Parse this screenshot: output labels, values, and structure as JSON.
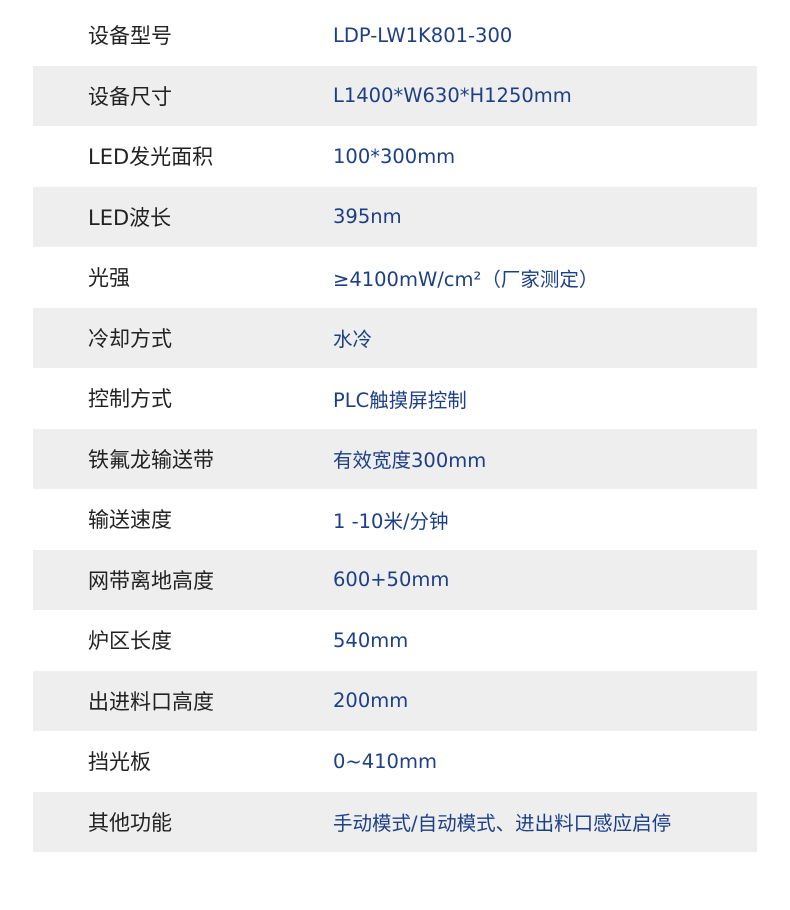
{
  "specs": [
    {
      "label": "设备型号",
      "value": "LDP-LW1K801-300"
    },
    {
      "label": "设备尺寸",
      "value": "L1400*W630*H1250mm"
    },
    {
      "label": "LED发光面积",
      "value": "100*300mm"
    },
    {
      "label": "LED波长",
      "value": "395nm"
    },
    {
      "label": "光强",
      "value": "≥4100mW/cm²（厂家测定）"
    },
    {
      "label": "冷却方式",
      "value": "水冷"
    },
    {
      "label": "控制方式",
      "value": "PLC触摸屏控制"
    },
    {
      "label": "铁氟龙输送带",
      "value": "有效宽度300mm"
    },
    {
      "label": "输送速度",
      "value": " 1 -10米/分钟"
    },
    {
      "label": "网带离地高度",
      "value": "600+50mm"
    },
    {
      "label": "炉区长度",
      "value": "540mm"
    },
    {
      "label": "出进料口高度",
      "value": "200mm"
    },
    {
      "label": "挡光板",
      "value": "0~410mm"
    },
    {
      "label": "其他功能",
      "value": "手动模式/自动模式、进出料口感应启停"
    }
  ],
  "colors": {
    "label": "#222222",
    "value": "#1d3f86",
    "stripe": "#eeeeee"
  }
}
